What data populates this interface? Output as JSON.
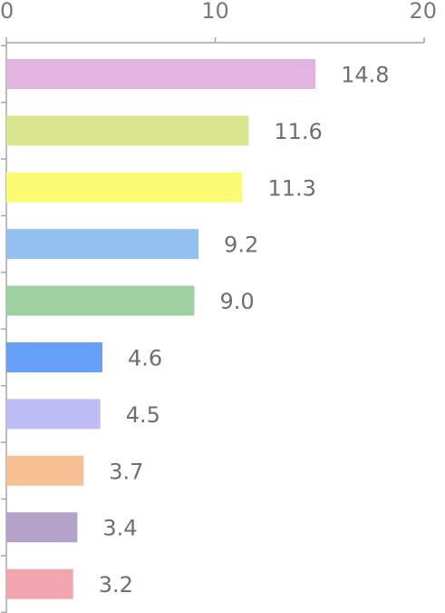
{
  "chart_data": {
    "type": "bar",
    "orientation": "horizontal",
    "xlim": [
      0,
      20
    ],
    "x_ticks": [
      "0",
      "10",
      "20"
    ],
    "grid": false,
    "legend": "none",
    "bars": [
      {
        "value": 14.8,
        "label": "14.8",
        "color": "#e2b4e0"
      },
      {
        "value": 11.6,
        "label": "11.6",
        "color": "#d9e68e"
      },
      {
        "value": 11.3,
        "label": "11.3",
        "color": "#fcfc74"
      },
      {
        "value": 9.2,
        "label": "9.2",
        "color": "#92c0ef"
      },
      {
        "value": 9.0,
        "label": "9.0",
        "color": "#9ed0a2"
      },
      {
        "value": 4.6,
        "label": "4.6",
        "color": "#66a0f8"
      },
      {
        "value": 4.5,
        "label": "4.5",
        "color": "#bdbcf4"
      },
      {
        "value": 3.7,
        "label": "3.7",
        "color": "#f7c193"
      },
      {
        "value": 3.4,
        "label": "3.4",
        "color": "#b4a2ca"
      },
      {
        "value": 3.2,
        "label": "3.2",
        "color": "#f4a6b0"
      }
    ],
    "axis_color": "#a6a6a6"
  }
}
